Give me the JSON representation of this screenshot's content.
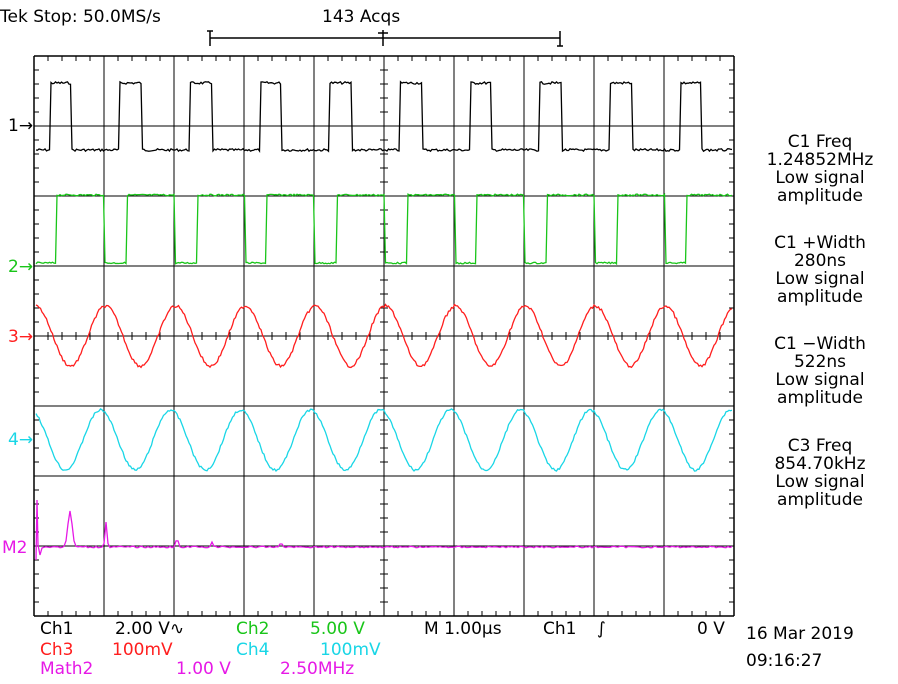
{
  "header": {
    "status": "Tek Stop: 50.0MS/s",
    "acqs": "143 Acqs"
  },
  "colors": {
    "ch1": "#000000",
    "ch2": "#19c519",
    "ch3": "#ff1e1e",
    "ch4": "#19d6e6",
    "math2": "#e619e6"
  },
  "markers": {
    "ch1": "1→",
    "ch2": "2→",
    "ch3": "3→",
    "ch4": "4→",
    "math2": "M2"
  },
  "measurements": [
    {
      "label": "C1 Freq",
      "value": "1.24852MHz",
      "note1": "Low signal",
      "note2": "amplitude"
    },
    {
      "label": "C1 +Width",
      "value": "280ns",
      "note1": "Low signal",
      "note2": "amplitude"
    },
    {
      "label": "C1 −Width",
      "value": "522ns",
      "note1": "Low signal",
      "note2": "amplitude"
    },
    {
      "label": "C3 Freq",
      "value": "854.70kHz",
      "note1": "Low signal",
      "note2": "amplitude"
    }
  ],
  "footer": {
    "ch1_name": "Ch1",
    "ch1_scale": "2.00 V∿",
    "ch2_name": "Ch2",
    "ch2_scale": "5.00 V",
    "timebase": "M 1.00µs",
    "trigger_src": "Ch1",
    "trigger_sym": "∫",
    "trigger_level": "0 V",
    "ch3_name": "Ch3",
    "ch3_scale": "100mV",
    "ch4_name": "Ch4",
    "ch4_scale": "100mV",
    "math2_name": "Math2",
    "math2_scale": "1.00 V",
    "math2_freq": "2.50MHz",
    "date": "16 Mar 2019",
    "time": "09:16:27"
  },
  "waveforms": {
    "ch1": {
      "type": "square",
      "frequency_mhz": 1.24852,
      "width_ns": 280
    },
    "ch2": {
      "type": "square-inverted",
      "frequency_mhz": 1.24852
    },
    "ch3": {
      "type": "sine",
      "frequency_khz": 854.7
    },
    "ch4": {
      "type": "sine"
    },
    "math2": {
      "type": "spectrum"
    }
  }
}
